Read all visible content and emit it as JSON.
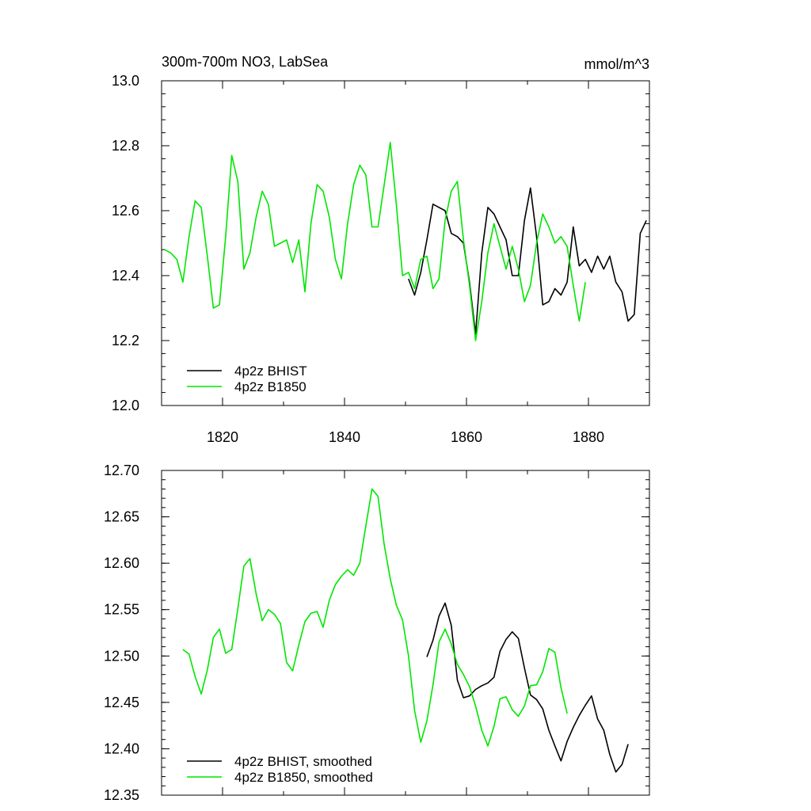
{
  "chart_data": [
    {
      "type": "line",
      "title": "300m-700m NO3, LabSea",
      "units": "mmol/m^3",
      "xlim": [
        1810,
        1890
      ],
      "ylim": [
        12.0,
        13.0
      ],
      "xticks": [
        1820,
        1840,
        1860,
        1880
      ],
      "xtick_labels": [
        "1820",
        "1840",
        "1860",
        "1880"
      ],
      "xticks_minor": [
        1810,
        1830,
        1850,
        1870,
        1890
      ],
      "yticks": [
        12.0,
        12.2,
        12.4,
        12.6,
        12.8,
        13.0
      ],
      "ytick_labels": [
        "12.0",
        "12.2",
        "12.4",
        "12.6",
        "12.8",
        "13.0"
      ],
      "grid": false,
      "legend_position": "bottom-left",
      "series": [
        {
          "name": "4p2z BHIST",
          "color": "#000000",
          "x": [
            1850.5,
            1851.5,
            1852.5,
            1853.5,
            1854.5,
            1855.5,
            1856.5,
            1857.5,
            1858.5,
            1859.5,
            1860.5,
            1861.5,
            1862.5,
            1863.5,
            1864.5,
            1865.5,
            1866.5,
            1867.5,
            1868.5,
            1869.5,
            1870.5,
            1871.5,
            1872.5,
            1873.5,
            1874.5,
            1875.5,
            1876.5,
            1877.5,
            1878.5,
            1879.5,
            1880.5,
            1881.5,
            1882.5,
            1883.5,
            1884.5,
            1885.5,
            1886.5,
            1887.5,
            1888.5,
            1889.5
          ],
          "y": [
            12.39,
            12.34,
            12.41,
            12.51,
            12.62,
            12.61,
            12.6,
            12.53,
            12.52,
            12.5,
            12.38,
            12.22,
            12.47,
            12.61,
            12.59,
            12.55,
            12.51,
            12.4,
            12.4,
            12.57,
            12.67,
            12.52,
            12.31,
            12.32,
            12.36,
            12.34,
            12.38,
            12.55,
            12.43,
            12.45,
            12.41,
            12.46,
            12.42,
            12.46,
            12.38,
            12.35,
            12.26,
            12.28,
            12.53,
            12.57
          ]
        },
        {
          "name": "4p2z B1850",
          "color": "#00e600",
          "x": [
            1810.5,
            1811.5,
            1812.5,
            1813.5,
            1814.5,
            1815.5,
            1816.5,
            1817.5,
            1818.5,
            1819.5,
            1820.5,
            1821.5,
            1822.5,
            1823.5,
            1824.5,
            1825.5,
            1826.5,
            1827.5,
            1828.5,
            1829.5,
            1830.5,
            1831.5,
            1832.5,
            1833.5,
            1834.5,
            1835.5,
            1836.5,
            1837.5,
            1838.5,
            1839.5,
            1840.5,
            1841.5,
            1842.5,
            1843.5,
            1844.5,
            1845.5,
            1846.5,
            1847.5,
            1848.5,
            1849.5,
            1850.5,
            1851.5,
            1852.5,
            1853.5,
            1854.5,
            1855.5,
            1856.5,
            1857.5,
            1858.5,
            1859.5,
            1860.5,
            1861.5,
            1862.5,
            1863.5,
            1864.5,
            1865.5,
            1866.5,
            1867.5,
            1868.5,
            1869.5,
            1870.5,
            1871.5,
            1872.5,
            1873.5,
            1874.5,
            1875.5,
            1876.5,
            1877.5,
            1878.5,
            1879.5
          ],
          "y": [
            12.48,
            12.47,
            12.45,
            12.38,
            12.52,
            12.63,
            12.61,
            12.46,
            12.3,
            12.31,
            12.52,
            12.77,
            12.69,
            12.42,
            12.47,
            12.58,
            12.66,
            12.62,
            12.49,
            12.5,
            12.51,
            12.44,
            12.51,
            12.35,
            12.56,
            12.68,
            12.66,
            12.58,
            12.45,
            12.39,
            12.56,
            12.68,
            12.74,
            12.71,
            12.55,
            12.55,
            12.68,
            12.81,
            12.62,
            12.4,
            12.41,
            12.36,
            12.45,
            12.46,
            12.36,
            12.39,
            12.57,
            12.66,
            12.69,
            12.51,
            12.37,
            12.2,
            12.32,
            12.47,
            12.56,
            12.49,
            12.42,
            12.49,
            12.42,
            12.32,
            12.37,
            12.5,
            12.59,
            12.55,
            12.5,
            12.52,
            12.49,
            12.37,
            12.26,
            12.38
          ]
        }
      ],
      "legend": [
        "4p2z BHIST",
        "4p2z B1850"
      ]
    },
    {
      "type": "line",
      "title": "",
      "xlim": [
        1810,
        1890
      ],
      "ylim": [
        12.35,
        12.7
      ],
      "xticks": [
        1820,
        1840,
        1860,
        1880
      ],
      "xtick_labels": [],
      "xticks_minor": [
        1810,
        1830,
        1850,
        1870,
        1890
      ],
      "yticks": [
        12.35,
        12.4,
        12.45,
        12.5,
        12.55,
        12.6,
        12.65,
        12.7
      ],
      "ytick_labels": [
        "12.35",
        "12.40",
        "12.45",
        "12.50",
        "12.55",
        "12.60",
        "12.65",
        "12.70"
      ],
      "grid": false,
      "legend_position": "bottom-left",
      "series": [
        {
          "name": "4p2z BHIST, smoothed",
          "color": "#000000",
          "x": [
            1853.5,
            1854.5,
            1855.5,
            1856.5,
            1857.5,
            1858.5,
            1859.5,
            1860.5,
            1861.5,
            1862.5,
            1863.5,
            1864.5,
            1865.5,
            1866.5,
            1867.5,
            1868.5,
            1869.5,
            1870.5,
            1871.5,
            1872.5,
            1873.5,
            1874.5,
            1875.5,
            1876.5,
            1877.5,
            1878.5,
            1879.5,
            1880.5,
            1881.5,
            1882.5,
            1883.5,
            1884.5,
            1885.5,
            1886.5
          ],
          "y": [
            12.499,
            12.517,
            12.543,
            12.557,
            12.533,
            12.474,
            12.455,
            12.457,
            12.464,
            12.468,
            12.471,
            12.477,
            12.505,
            12.518,
            12.526,
            12.519,
            12.487,
            12.458,
            12.453,
            12.443,
            12.42,
            12.403,
            12.387,
            12.408,
            12.423,
            12.436,
            12.447,
            12.457,
            12.432,
            12.42,
            12.394,
            12.375,
            12.383,
            12.405
          ]
        },
        {
          "name": "4p2z B1850, smoothed",
          "color": "#00e600",
          "x": [
            1813.5,
            1814.5,
            1815.5,
            1816.5,
            1817.5,
            1818.5,
            1819.5,
            1820.5,
            1821.5,
            1822.5,
            1823.5,
            1824.5,
            1825.5,
            1826.5,
            1827.5,
            1828.5,
            1829.5,
            1830.5,
            1831.5,
            1832.5,
            1833.5,
            1834.5,
            1835.5,
            1836.5,
            1837.5,
            1838.5,
            1839.5,
            1840.5,
            1841.5,
            1842.5,
            1843.5,
            1844.5,
            1845.5,
            1846.5,
            1847.5,
            1848.5,
            1849.5,
            1850.5,
            1851.5,
            1852.5,
            1853.5,
            1854.5,
            1855.5,
            1856.5,
            1857.5,
            1858.5,
            1859.5,
            1860.5,
            1861.5,
            1862.5,
            1863.5,
            1864.5,
            1865.5,
            1866.5,
            1867.5,
            1868.5,
            1869.5,
            1870.5,
            1871.5,
            1872.5,
            1873.5,
            1874.5,
            1875.5,
            1876.5
          ],
          "y": [
            12.507,
            12.502,
            12.478,
            12.459,
            12.485,
            12.52,
            12.529,
            12.503,
            12.507,
            12.551,
            12.597,
            12.605,
            12.567,
            12.538,
            12.55,
            12.545,
            12.535,
            12.493,
            12.484,
            12.512,
            12.537,
            12.546,
            12.548,
            12.531,
            12.56,
            12.577,
            12.586,
            12.593,
            12.587,
            12.6,
            12.64,
            12.68,
            12.672,
            12.62,
            12.583,
            12.555,
            12.539,
            12.5,
            12.441,
            12.407,
            12.43,
            12.469,
            12.515,
            12.529,
            12.513,
            12.491,
            12.48,
            12.467,
            12.446,
            12.42,
            12.403,
            12.424,
            12.454,
            12.456,
            12.442,
            12.435,
            12.446,
            12.468,
            12.469,
            12.483,
            12.508,
            12.504,
            12.466,
            12.438
          ]
        }
      ],
      "legend": [
        "4p2z BHIST, smoothed",
        "4p2z B1850, smoothed"
      ]
    }
  ]
}
